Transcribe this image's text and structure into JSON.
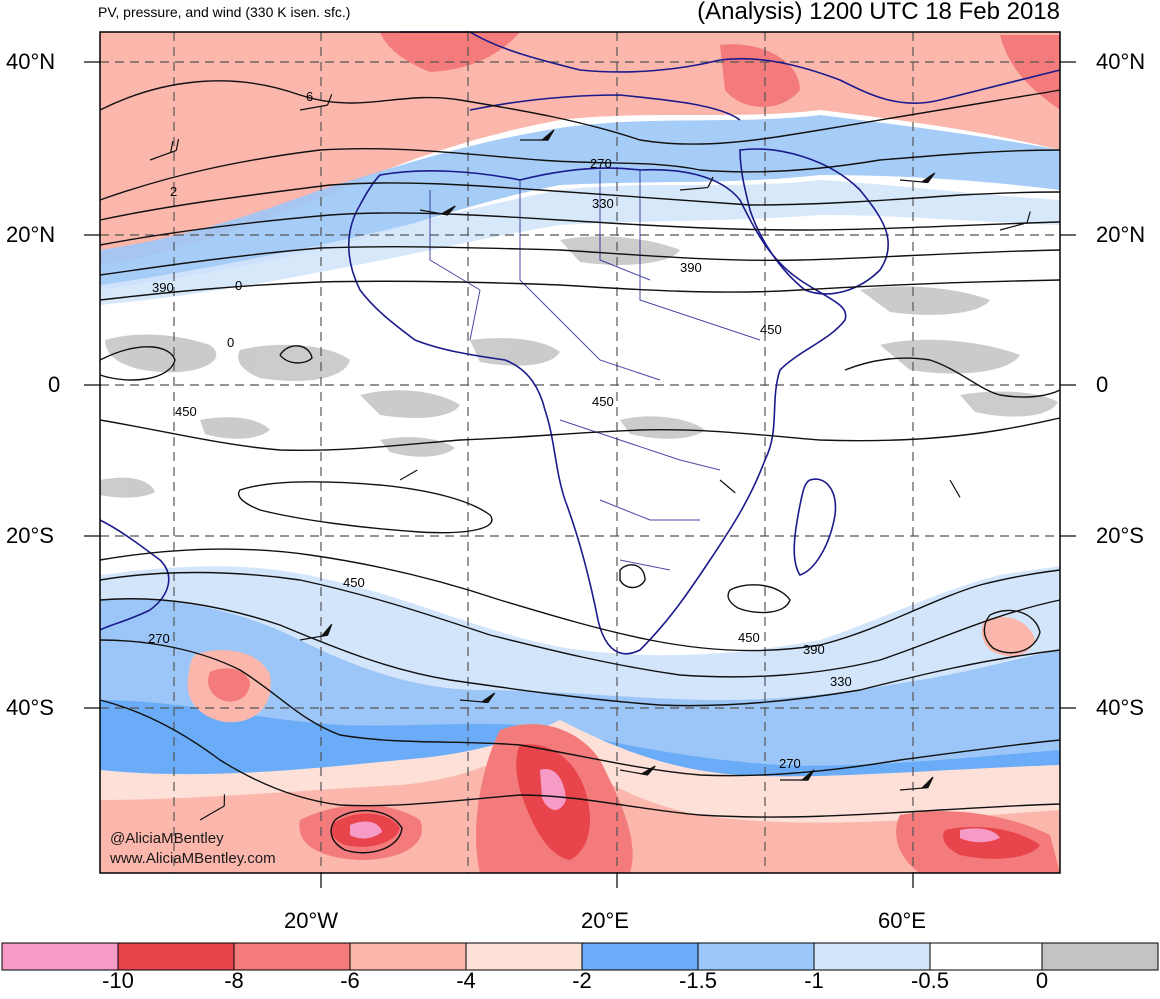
{
  "header": {
    "left_title": "PV, pressure, and wind (330 K isen. sfc.)",
    "right_title": "(Analysis) 1200 UTC 18 Feb 2018"
  },
  "map": {
    "latitude_labels": [
      "40°N",
      "20°N",
      "0",
      "20°S",
      "40°S"
    ],
    "longitude_labels": [
      "20°W",
      "20°E",
      "60°E"
    ],
    "contour_labels": [
      "270",
      "330",
      "390",
      "450",
      "0",
      "2",
      "6"
    ],
    "credits": [
      "@AliciaMBentley",
      "www.AliciaMBentley.com"
    ]
  },
  "colorbar": {
    "ticks": [
      "-10",
      "-8",
      "-6",
      "-4",
      "-2",
      "-1.5",
      "-1",
      "-0.5",
      "0"
    ],
    "colors": [
      "#f59bc6",
      "#e8444b",
      "#f47b7b",
      "#fbb7ac",
      "#fde0d8",
      "#6aacf8",
      "#9cc6f7",
      "#d3e5fb",
      "#ffffff",
      "#c3c3c3"
    ]
  }
}
